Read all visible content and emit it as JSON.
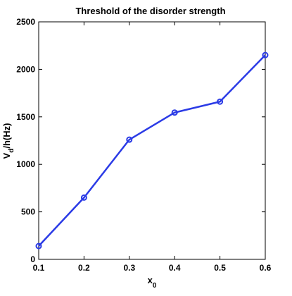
{
  "chart_data": {
    "type": "line",
    "title": "Threshold of the disorder strength",
    "xlabel": {
      "main": "x",
      "sub": "0"
    },
    "ylabel": {
      "main": "V",
      "sub": "d",
      "rest": "/h(Hz)"
    },
    "xlim": [
      0.1,
      0.6
    ],
    "ylim": [
      0,
      2500
    ],
    "xticks": [
      "0.1",
      "0.2",
      "0.3",
      "0.4",
      "0.5",
      "0.6"
    ],
    "yticks": [
      "0",
      "500",
      "1000",
      "1500",
      "2000",
      "2500"
    ],
    "grid": false,
    "series": [
      {
        "x": [
          0.1,
          0.2,
          0.3,
          0.4,
          0.5,
          0.6
        ],
        "values": [
          140,
          650,
          1260,
          1545,
          1660,
          2150
        ],
        "color": "#2b3be6",
        "marker": "circle"
      }
    ]
  }
}
